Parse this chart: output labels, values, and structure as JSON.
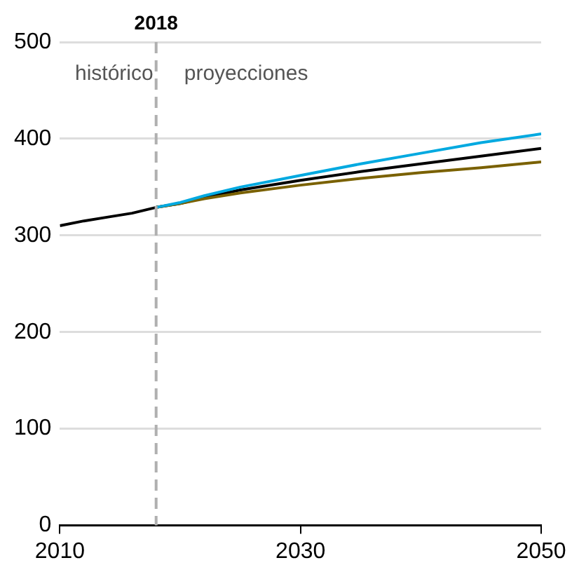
{
  "chart_data": {
    "type": "line",
    "x": [
      2010,
      2012,
      2014,
      2016,
      2018,
      2020,
      2022,
      2025,
      2030,
      2035,
      2040,
      2045,
      2050
    ],
    "series": [
      {
        "color": "#00a9e0",
        "x": [
          2018,
          2020,
          2022,
          2025,
          2030,
          2035,
          2040,
          2045,
          2050
        ],
        "values": [
          329,
          334,
          341,
          350,
          362,
          374,
          385,
          396,
          405
        ]
      },
      {
        "color": "#7a6100",
        "x": [
          2018,
          2020,
          2022,
          2025,
          2030,
          2035,
          2040,
          2045,
          2050
        ],
        "values": [
          329,
          333,
          338,
          344,
          352,
          359,
          365,
          370,
          376
        ]
      },
      {
        "color": "#000000",
        "values": [
          310,
          315,
          319,
          323,
          329,
          333,
          339,
          347,
          357,
          366,
          374,
          382,
          390
        ]
      }
    ],
    "xlim": [
      2010,
      2050
    ],
    "xticks": [
      2010,
      2030,
      2050
    ],
    "ylim": [
      0,
      500
    ],
    "yticks": [
      0,
      100,
      200,
      300,
      400,
      500
    ],
    "grid": "y",
    "legend": false,
    "marker": "none",
    "line_style": "solid",
    "ref_lines": [
      {
        "axis": "x",
        "value": 2018,
        "label": "2018",
        "color": "#b0b0b0",
        "line_style": "dashed"
      }
    ],
    "annotations": [
      "histórico",
      "proyecciones"
    ]
  }
}
